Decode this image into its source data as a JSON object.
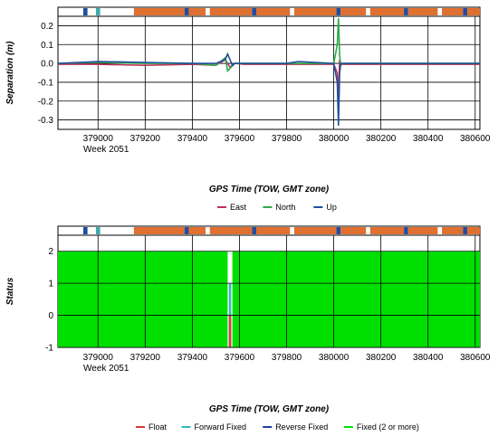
{
  "chart_data": [
    {
      "type": "line",
      "title": "",
      "ylabel": "Separation (m)",
      "xlabel": "GPS Time (TOW, GMT zone)",
      "week_label": "Week 2051",
      "xlim": [
        378830,
        380620
      ],
      "ylim": [
        -0.35,
        0.25
      ],
      "x_ticks": [
        379000,
        379200,
        379400,
        379600,
        379800,
        380000,
        380200,
        380400,
        380600
      ],
      "y_ticks": [
        -0.3,
        -0.2,
        -0.1,
        0.0,
        0.1,
        0.2
      ],
      "y_tick_labels": [
        "-0.3",
        "-0.2",
        "-0.1",
        "0.0",
        "0.1",
        "0.2"
      ],
      "grid": true,
      "legend_position": "bottom",
      "series": [
        {
          "name": "East",
          "color": "#c0305a",
          "x": [
            378830,
            379000,
            379200,
            379400,
            379500,
            379540,
            379560,
            379580,
            379620,
            379800,
            380000,
            380015,
            380020,
            380025,
            380030,
            380040,
            380200,
            380400,
            380620
          ],
          "y": [
            -0.005,
            -0.005,
            -0.01,
            -0.005,
            -0.01,
            0.02,
            -0.02,
            0.0,
            -0.005,
            -0.005,
            -0.005,
            -0.05,
            -0.19,
            0.02,
            -0.005,
            -0.005,
            -0.005,
            -0.005,
            -0.005
          ]
        },
        {
          "name": "North",
          "color": "#2eaa4a",
          "x": [
            378830,
            379000,
            379200,
            379400,
            379500,
            379540,
            379550,
            379565,
            379580,
            379620,
            379800,
            380000,
            380015,
            380020,
            380025,
            380030,
            380040,
            380200,
            380400,
            380620
          ],
          "y": [
            0.0,
            0.005,
            0.0,
            0.0,
            -0.01,
            0.03,
            -0.04,
            -0.02,
            0.0,
            0.0,
            0.0,
            0.0,
            0.1,
            0.24,
            0.04,
            -0.01,
            0.0,
            0.0,
            0.0,
            0.0
          ]
        },
        {
          "name": "Up",
          "color": "#1f4e9c",
          "x": [
            378830,
            379000,
            379200,
            379400,
            379500,
            379540,
            379550,
            379570,
            379580,
            379620,
            379800,
            379850,
            380000,
            380015,
            380020,
            380025,
            380030,
            380040,
            380200,
            380400,
            380620
          ],
          "y": [
            0.0,
            0.01,
            0.005,
            0.0,
            0.0,
            0.02,
            0.05,
            -0.01,
            0.0,
            0.0,
            0.0,
            0.01,
            0.0,
            -0.1,
            -0.33,
            -0.05,
            0.0,
            0.0,
            0.0,
            0.0,
            0.0
          ]
        }
      ]
    },
    {
      "type": "area",
      "title": "",
      "ylabel": "Status",
      "xlabel": "GPS Time (TOW, GMT zone)",
      "week_label": "Week 2051",
      "xlim": [
        378830,
        380620
      ],
      "ylim": [
        -1,
        2.5
      ],
      "x_ticks": [
        379000,
        379200,
        379400,
        379600,
        379800,
        380000,
        380200,
        380400,
        380600
      ],
      "y_ticks": [
        -1,
        0,
        1,
        2
      ],
      "grid": true,
      "legend_position": "bottom",
      "series": [
        {
          "name": "Float",
          "color": "#d43a3a",
          "x": [
            379555,
            379565
          ],
          "y": [
            0,
            0
          ]
        },
        {
          "name": "Forward Fixed",
          "color": "#33b8b8",
          "x": [
            379555,
            379565
          ],
          "y": [
            1,
            1
          ]
        },
        {
          "name": "Reverse Fixed",
          "color": "#1f3f9c",
          "x": [],
          "y": []
        },
        {
          "name": "Fixed (2 or more)",
          "color": "#00e000",
          "x": [
            378830,
            379550,
            379570,
            380620
          ],
          "y": [
            2,
            2,
            2,
            2
          ]
        }
      ],
      "gap_x": [
        379550,
        379570
      ]
    }
  ],
  "status_strip_colors": {
    "orange": "#e07030",
    "blue": "#1f4ea0",
    "white": "#ffffff",
    "teal": "#40a8a8"
  }
}
